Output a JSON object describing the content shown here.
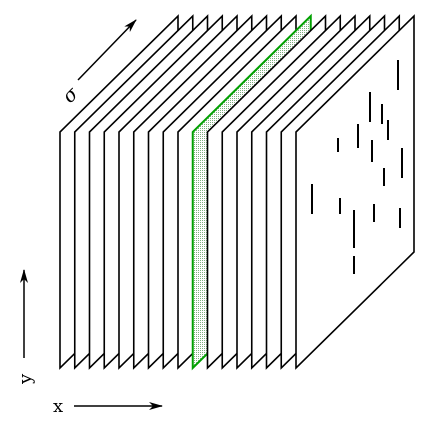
{
  "diagram": {
    "axes": {
      "x": {
        "label": "x"
      },
      "y": {
        "label": "y"
      },
      "depth": {
        "label": "σ"
      }
    },
    "slices": {
      "count": 17,
      "highlighted_index": 9
    },
    "colors": {
      "line": "#000000",
      "highlight_stroke": "#00a000",
      "highlight_fill": "#c8dcc8",
      "background": "#ffffff"
    },
    "icons": [
      "x-axis-arrow-icon",
      "y-axis-arrow-icon",
      "sigma-axis-arrow-icon"
    ]
  }
}
